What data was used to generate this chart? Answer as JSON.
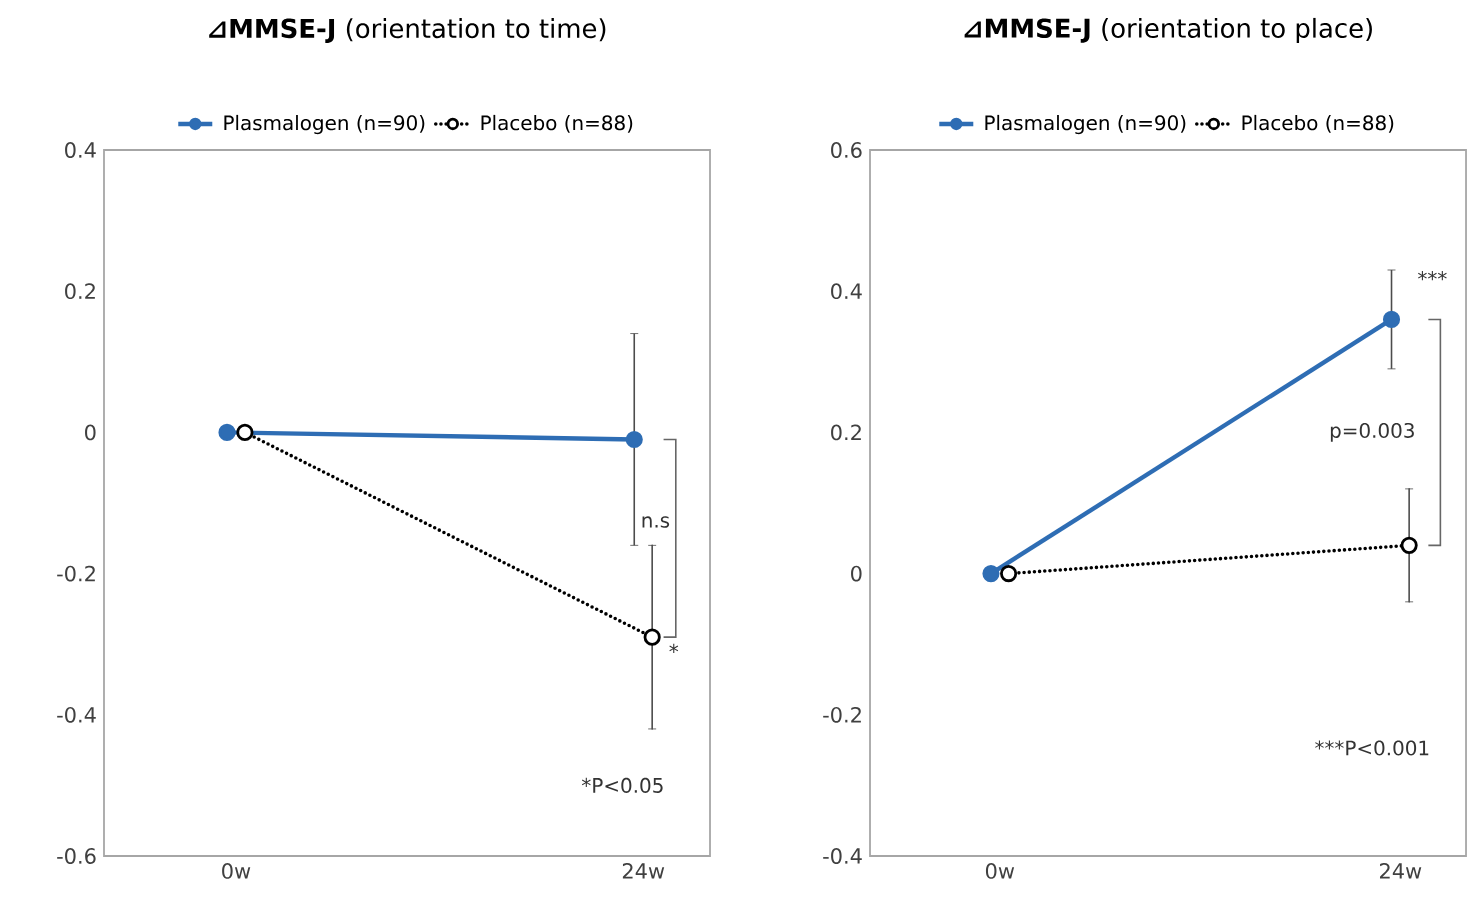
{
  "chart_data": [
    {
      "type": "line",
      "title": "**⊿MMSE-J** (orientation to time)",
      "categories": [
        "0w",
        "24w"
      ],
      "ylim": [
        -0.6,
        0.4
      ],
      "yticks": [
        -0.6,
        -0.4,
        -0.2,
        0,
        0.2,
        0.4
      ],
      "grid": false,
      "legend": "top",
      "series": [
        {
          "name": "Plasmalogen (n=90)",
          "color": "#2e6db4",
          "values": [
            0,
            -0.01
          ],
          "errors": [
            null,
            0.15
          ],
          "marker": "circle",
          "line_style": "solid"
        },
        {
          "name": "Placebo (n=88)",
          "color": "#000000",
          "values": [
            0,
            -0.29
          ],
          "errors": [
            null,
            0.13
          ],
          "marker": "circle",
          "line_style": "dotted"
        }
      ],
      "annotations": [
        "n.s",
        "*",
        "*P<0.05"
      ]
    },
    {
      "type": "line",
      "title": "**⊿MMSE-J** (orientation to place)",
      "categories": [
        "0w",
        "24w"
      ],
      "ylim": [
        -0.4,
        0.6
      ],
      "yticks": [
        -0.4,
        -0.2,
        0,
        0.2,
        0.4,
        0.6
      ],
      "grid": false,
      "legend": "top",
      "series": [
        {
          "name": "Plasmalogen (n=90)",
          "color": "#2e6db4",
          "values": [
            0,
            0.36
          ],
          "errors": [
            null,
            0.07
          ],
          "marker": "circle",
          "line_style": "solid"
        },
        {
          "name": "Placebo (n=88)",
          "color": "#000000",
          "values": [
            0,
            0.04
          ],
          "errors": [
            null,
            0.08
          ],
          "marker": "circle",
          "line_style": "dotted"
        }
      ],
      "annotations": [
        "***",
        "p=0.003",
        "***P<0.001"
      ]
    }
  ]
}
